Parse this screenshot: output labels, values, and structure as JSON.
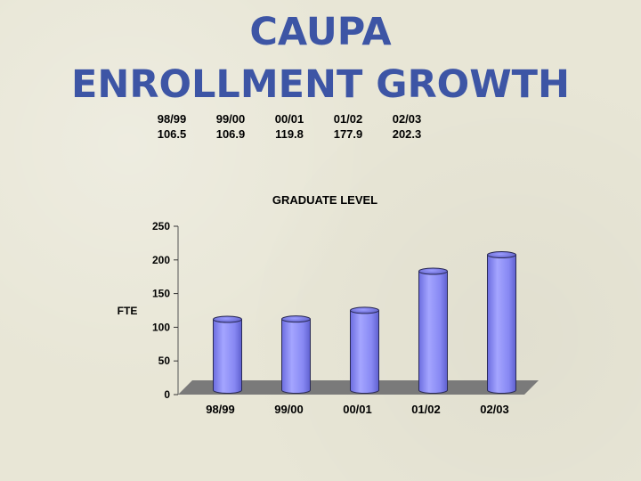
{
  "title": {
    "line1": "CAUPA",
    "line2": "ENROLLMENT GROWTH"
  },
  "summary_table": {
    "years": [
      "98/99",
      "99/00",
      "00/01",
      "01/02",
      "02/03"
    ],
    "values": [
      "106.5",
      "106.9",
      "119.8",
      "177.9",
      "202.3"
    ]
  },
  "colors": {
    "title": "#3d55a5",
    "bar": "#8b8cf5",
    "floor": "#7a7a7a"
  },
  "chart_data": {
    "type": "bar",
    "title": "GRADUATE LEVEL",
    "xlabel": "",
    "ylabel": "FTE",
    "categories": [
      "98/99",
      "99/00",
      "00/01",
      "01/02",
      "02/03"
    ],
    "values": [
      106.5,
      106.9,
      119.8,
      177.9,
      202.3
    ],
    "ylim": [
      0,
      250
    ],
    "yticks": [
      0,
      50,
      100,
      150,
      200,
      250
    ],
    "grid": false,
    "legend": "none",
    "style": "3d-cylinder"
  }
}
